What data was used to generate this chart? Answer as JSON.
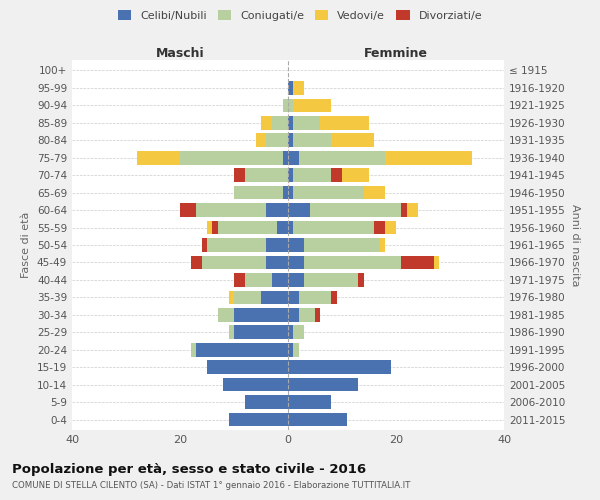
{
  "age_groups": [
    "0-4",
    "5-9",
    "10-14",
    "15-19",
    "20-24",
    "25-29",
    "30-34",
    "35-39",
    "40-44",
    "45-49",
    "50-54",
    "55-59",
    "60-64",
    "65-69",
    "70-74",
    "75-79",
    "80-84",
    "85-89",
    "90-94",
    "95-99",
    "100+"
  ],
  "birth_years": [
    "2011-2015",
    "2006-2010",
    "2001-2005",
    "1996-2000",
    "1991-1995",
    "1986-1990",
    "1981-1985",
    "1976-1980",
    "1971-1975",
    "1966-1970",
    "1961-1965",
    "1956-1960",
    "1951-1955",
    "1946-1950",
    "1941-1945",
    "1936-1940",
    "1931-1935",
    "1926-1930",
    "1921-1925",
    "1916-1920",
    "≤ 1915"
  ],
  "male": {
    "celibe": [
      11,
      8,
      12,
      15,
      17,
      10,
      10,
      5,
      3,
      4,
      4,
      2,
      4,
      1,
      0,
      1,
      0,
      0,
      0,
      0,
      0
    ],
    "coniugato": [
      0,
      0,
      0,
      0,
      1,
      1,
      3,
      5,
      5,
      12,
      11,
      11,
      13,
      9,
      8,
      19,
      4,
      3,
      1,
      0,
      0
    ],
    "vedovo": [
      0,
      0,
      0,
      0,
      0,
      0,
      0,
      1,
      0,
      0,
      0,
      1,
      0,
      0,
      0,
      8,
      2,
      2,
      0,
      0,
      0
    ],
    "divorziato": [
      0,
      0,
      0,
      0,
      0,
      0,
      0,
      0,
      2,
      2,
      1,
      1,
      3,
      0,
      2,
      0,
      0,
      0,
      0,
      0,
      0
    ]
  },
  "female": {
    "nubile": [
      11,
      8,
      13,
      19,
      1,
      1,
      2,
      2,
      3,
      3,
      3,
      1,
      4,
      1,
      1,
      2,
      1,
      1,
      0,
      1,
      0
    ],
    "coniugata": [
      0,
      0,
      0,
      0,
      1,
      2,
      3,
      6,
      10,
      18,
      14,
      15,
      17,
      13,
      7,
      16,
      7,
      5,
      1,
      0,
      0
    ],
    "vedova": [
      0,
      0,
      0,
      0,
      0,
      0,
      0,
      0,
      0,
      1,
      1,
      2,
      2,
      4,
      5,
      16,
      8,
      9,
      7,
      2,
      0
    ],
    "divorziata": [
      0,
      0,
      0,
      0,
      0,
      0,
      1,
      1,
      1,
      6,
      0,
      2,
      1,
      0,
      2,
      0,
      0,
      0,
      0,
      0,
      0
    ]
  },
  "colors": {
    "celibe": "#4a72b0",
    "coniugato": "#b8cfa0",
    "vedovo": "#f5c842",
    "divorziato": "#c0392b"
  },
  "title": "Popolazione per età, sesso e stato civile - 2016",
  "subtitle": "COMUNE DI STELLA CILENTO (SA) - Dati ISTAT 1° gennaio 2016 - Elaborazione TUTTITALIA.IT",
  "ylabel_left": "Fasce di età",
  "ylabel_right": "Anni di nascita",
  "xlim": 40,
  "xticks": [
    -40,
    -20,
    0,
    20,
    40
  ],
  "xtick_labels": [
    "40",
    "20",
    "0",
    "20",
    "40"
  ],
  "legend_labels": [
    "Celibi/Nubili",
    "Coniugati/e",
    "Vedovi/e",
    "Divorziati/e"
  ],
  "maschi_label": "Maschi",
  "femmine_label": "Femmine",
  "bg_color": "#f0f0f0",
  "plot_bg_color": "#ffffff"
}
